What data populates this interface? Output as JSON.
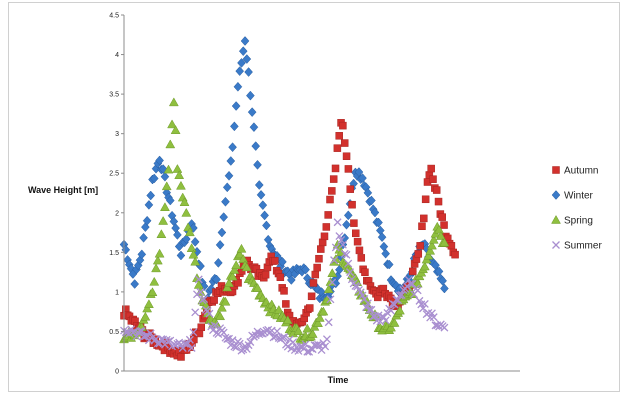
{
  "chart_data": {
    "type": "scatter",
    "title": "",
    "xlabel": "Time",
    "ylabel": "Wave Height [m]",
    "ylim": [
      0,
      4.5
    ],
    "yticks": [
      "0",
      "0.5",
      "1",
      "1.5",
      "2",
      "2.5",
      "3",
      "3.5",
      "4",
      "4.5"
    ],
    "x_tick_labels": "none",
    "xlim": [
      0,
      100
    ],
    "grid": false,
    "legend_position": "right",
    "series": [
      {
        "name": "Autumn",
        "marker": "square",
        "color": "#d2312d",
        "keypoints": [
          [
            0,
            0.75
          ],
          [
            3,
            0.6
          ],
          [
            6,
            0.45
          ],
          [
            10,
            0.35
          ],
          [
            13,
            0.28
          ],
          [
            16,
            0.2
          ],
          [
            18,
            0.3
          ],
          [
            21,
            0.5
          ],
          [
            24,
            0.9
          ],
          [
            28,
            1.05
          ],
          [
            31,
            1.05
          ],
          [
            34,
            1.4
          ],
          [
            36,
            1.3
          ],
          [
            39,
            1.15
          ],
          [
            41,
            1.45
          ],
          [
            44,
            1.2
          ],
          [
            46,
            0.7
          ],
          [
            49,
            0.55
          ],
          [
            52,
            0.8
          ],
          [
            54,
            1.25
          ],
          [
            57,
            1.9
          ],
          [
            59,
            2.4
          ],
          [
            61,
            3.2
          ],
          [
            63,
            2.6
          ],
          [
            65,
            1.7
          ],
          [
            68,
            1.2
          ],
          [
            71,
            0.95
          ],
          [
            73,
            1.05
          ],
          [
            76,
            0.85
          ],
          [
            79,
            0.95
          ],
          [
            81,
            1.2
          ],
          [
            83,
            1.5
          ],
          [
            85,
            2.3
          ],
          [
            86,
            2.6
          ],
          [
            88,
            2.2
          ],
          [
            90,
            1.8
          ],
          [
            93,
            1.5
          ]
        ]
      },
      {
        "name": "Winter",
        "marker": "diamond",
        "color": "#3a7ac8",
        "keypoints": [
          [
            0,
            1.6
          ],
          [
            3,
            1.15
          ],
          [
            5,
            1.5
          ],
          [
            8,
            2.4
          ],
          [
            10,
            2.7
          ],
          [
            12,
            2.3
          ],
          [
            14,
            1.9
          ],
          [
            16,
            1.5
          ],
          [
            19,
            1.9
          ],
          [
            21,
            1.4
          ],
          [
            23,
            0.9
          ],
          [
            26,
            1.2
          ],
          [
            28,
            2.0
          ],
          [
            30,
            2.6
          ],
          [
            32,
            3.6
          ],
          [
            34,
            4.2
          ],
          [
            36,
            3.3
          ],
          [
            38,
            2.3
          ],
          [
            41,
            1.6
          ],
          [
            44,
            1.35
          ],
          [
            47,
            1.2
          ],
          [
            50,
            1.3
          ],
          [
            53,
            1.1
          ],
          [
            55,
            0.95
          ],
          [
            58,
            1.0
          ],
          [
            60,
            1.2
          ],
          [
            63,
            2.0
          ],
          [
            65,
            2.55
          ],
          [
            67,
            2.45
          ],
          [
            69,
            2.2
          ],
          [
            71,
            1.9
          ],
          [
            73,
            1.6
          ],
          [
            75,
            1.2
          ],
          [
            78,
            1.0
          ],
          [
            80,
            1.15
          ],
          [
            82,
            1.45
          ],
          [
            84,
            1.6
          ],
          [
            86,
            1.4
          ],
          [
            88,
            1.25
          ],
          [
            90,
            1.05
          ]
        ]
      },
      {
        "name": "Spring",
        "marker": "triangle",
        "color": "#8fbf3f",
        "keypoints": [
          [
            0,
            0.4
          ],
          [
            3,
            0.5
          ],
          [
            5,
            0.6
          ],
          [
            8,
            1.0
          ],
          [
            10,
            1.5
          ],
          [
            12,
            2.3
          ],
          [
            14,
            3.4
          ],
          [
            15,
            2.6
          ],
          [
            17,
            2.1
          ],
          [
            19,
            1.6
          ],
          [
            21,
            1.1
          ],
          [
            23,
            0.8
          ],
          [
            25,
            0.6
          ],
          [
            27,
            0.7
          ],
          [
            29,
            1.0
          ],
          [
            31,
            1.3
          ],
          [
            33,
            1.5
          ],
          [
            35,
            1.2
          ],
          [
            38,
            1.0
          ],
          [
            41,
            0.8
          ],
          [
            44,
            0.7
          ],
          [
            47,
            0.55
          ],
          [
            50,
            0.45
          ],
          [
            53,
            0.5
          ],
          [
            56,
            0.8
          ],
          [
            58,
            1.1
          ],
          [
            60,
            1.55
          ],
          [
            62,
            1.4
          ],
          [
            64,
            1.2
          ],
          [
            67,
            0.95
          ],
          [
            70,
            0.7
          ],
          [
            73,
            0.5
          ],
          [
            76,
            0.6
          ],
          [
            78,
            0.85
          ],
          [
            80,
            0.95
          ],
          [
            82,
            1.1
          ],
          [
            84,
            1.3
          ],
          [
            86,
            1.55
          ],
          [
            88,
            1.85
          ],
          [
            90,
            1.6
          ]
        ]
      },
      {
        "name": "Summer",
        "marker": "x",
        "color": "#a98fd0",
        "keypoints": [
          [
            0,
            0.55
          ],
          [
            3,
            0.5
          ],
          [
            5,
            0.45
          ],
          [
            8,
            0.42
          ],
          [
            11,
            0.38
          ],
          [
            14,
            0.32
          ],
          [
            17,
            0.3
          ],
          [
            19,
            0.35
          ],
          [
            21,
            1.1
          ],
          [
            23,
            0.8
          ],
          [
            25,
            0.55
          ],
          [
            27,
            0.5
          ],
          [
            29,
            0.4
          ],
          [
            31,
            0.35
          ],
          [
            34,
            0.3
          ],
          [
            37,
            0.45
          ],
          [
            40,
            0.55
          ],
          [
            43,
            0.45
          ],
          [
            46,
            0.35
          ],
          [
            49,
            0.3
          ],
          [
            52,
            0.28
          ],
          [
            55,
            0.3
          ],
          [
            57,
            0.35
          ],
          [
            59,
            1.35
          ],
          [
            60,
            1.85
          ],
          [
            62,
            1.5
          ],
          [
            64,
            1.2
          ],
          [
            66,
            1.0
          ],
          [
            68,
            0.85
          ],
          [
            70,
            0.7
          ],
          [
            72,
            0.65
          ],
          [
            74,
            0.7
          ],
          [
            76,
            0.85
          ],
          [
            78,
            1.0
          ],
          [
            80,
            1.1
          ],
          [
            82,
            1.0
          ],
          [
            84,
            0.85
          ],
          [
            86,
            0.7
          ],
          [
            88,
            0.6
          ],
          [
            90,
            0.55
          ]
        ]
      }
    ]
  }
}
